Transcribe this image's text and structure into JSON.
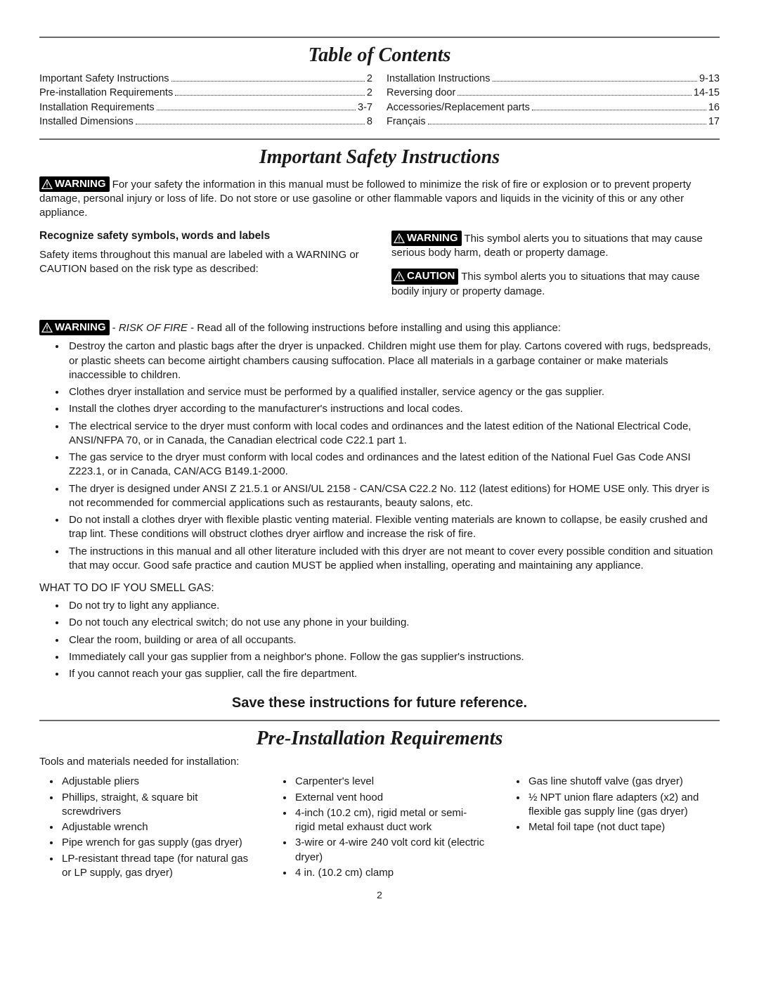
{
  "hr_color": "#6a6a6a",
  "text_color": "#1a1a1a",
  "bg_color": "#ffffff",
  "badges": {
    "warning": "WARNING",
    "caution": "CAUTION"
  },
  "toc": {
    "title": "Table of Contents",
    "left": [
      {
        "label": "Important Safety Instructions",
        "page": "2"
      },
      {
        "label": "Pre-installation Requirements",
        "page": "2"
      },
      {
        "label": "Installation Requirements",
        "page": "3-7"
      },
      {
        "label": "Installed Dimensions",
        "page": "8"
      }
    ],
    "right": [
      {
        "label": "Installation Instructions",
        "page": "9-13"
      },
      {
        "label": "Reversing door",
        "page": "14-15"
      },
      {
        "label": "Accessories/Replacement parts",
        "page": "16"
      },
      {
        "label": "Français",
        "page": "17"
      }
    ]
  },
  "safety": {
    "title": "Important Safety Instructions",
    "intro": "For your safety the information in this manual must be followed to minimize the risk of fire or explosion or to prevent property damage, personal injury or loss of life. Do not store or use gasoline or other flammable vapors and liquids in the vicinity of this or any other appliance.",
    "recognize_head": "Recognize safety symbols, words and labels",
    "recognize_body": "Safety items throughout this manual are labeled with a WARNING or CAUTION based on the risk type as described:",
    "warning_desc": "This symbol alerts you to situations that may cause serious body harm, death or property damage.",
    "caution_desc": "This symbol alerts you to situations that may cause bodily injury or property damage.",
    "risk_prefix": " - ",
    "risk_label": "RISK OF FIRE",
    "risk_suffix": " - Read all of the following instructions before installing and using this appliance:",
    "bullets": [
      "Destroy the carton and plastic bags after the dryer is unpacked. Children might use them for play. Cartons covered with rugs, bedspreads, or plastic sheets can become airtight chambers causing suffocation. Place all materials in a garbage container or make materials inaccessible to children.",
      "Clothes dryer installation and service must be performed by a qualified installer, service agency or the gas supplier.",
      "Install the clothes dryer according to the manufacturer's instructions and local codes.",
      "The electrical service to the dryer must conform with local codes and ordinances and the latest edition of the National Electrical Code, ANSI/NFPA 70, or in Canada, the Canadian electrical code C22.1 part 1.",
      "The gas service to the dryer must conform with local codes and ordinances and the latest edition of the National Fuel Gas Code ANSI Z223.1, or in Canada, CAN/ACG  B149.1-2000.",
      "The dryer is designed under ANSI Z 21.5.1  or ANSI/UL 2158 - CAN/CSA C22.2 No. 112 (latest editions) for HOME USE only. This dryer is not recommended for commercial applications such as restaurants, beauty salons, etc.",
      "Do not install a clothes dryer with flexible plastic venting material. Flexible venting materials are known to collapse, be easily crushed and trap lint. These conditions will obstruct clothes dryer airflow and increase the risk of fire.",
      "The instructions in this manual and all other literature included with this dryer are not meant to cover every possible condition and situation that may occur. Good safe practice and caution MUST be applied when installing, operating and maintaining any appliance."
    ],
    "smell_head": "WHAT TO DO IF YOU SMELL GAS:",
    "smell_bullets": [
      "Do not try to light any appliance.",
      "Do not touch any electrical switch; do not use any phone in your building.",
      "Clear the room, building or area of all occupants.",
      "Immediately call your gas supplier from a neighbor's phone. Follow the gas supplier's instructions.",
      "If you cannot reach your gas supplier, call the fire department."
    ],
    "save_line": "Save these instructions for future reference."
  },
  "preinstall": {
    "title": "Pre-Installation Requirements",
    "tools_head": "Tools and materials needed for installation:",
    "col1": [
      "Adjustable pliers",
      "Phillips, straight, & square bit screwdrivers",
      "Adjustable wrench",
      "Pipe wrench for gas supply (gas dryer)",
      "LP-resistant thread tape (for natural gas or LP supply, gas dryer)"
    ],
    "col2": [
      "Carpenter's level",
      "External vent hood",
      "4-inch (10.2 cm), rigid metal or semi-rigid metal exhaust duct work",
      "3-wire or 4-wire 240 volt cord kit (electric dryer)",
      "4 in. (10.2 cm) clamp"
    ],
    "col3": [
      "Gas line shutoff valve (gas dryer)",
      "½ NPT union flare adapters (x2) and flexible gas supply line (gas dryer)",
      "Metal foil tape (not duct tape)"
    ]
  },
  "page_number": "2"
}
